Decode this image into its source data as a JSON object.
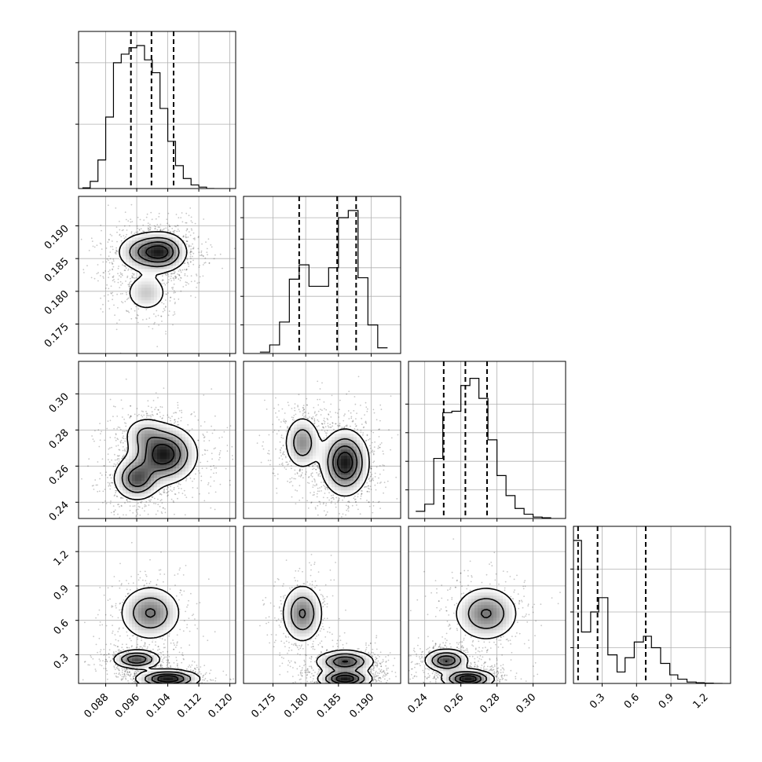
{
  "chart_data": {
    "type": "scatter",
    "variables": [
      {
        "ticks": [
          0.088,
          0.096,
          0.104,
          0.112,
          0.12
        ],
        "labels": [
          "0.088",
          "0.096",
          "0.104",
          "0.112",
          "0.120"
        ],
        "range": [
          0.081,
          0.1215
        ]
      },
      {
        "ticks": [
          0.175,
          0.18,
          0.185,
          0.19
        ],
        "labels": [
          "0.175",
          "0.180",
          "0.185",
          "0.190"
        ],
        "range": [
          0.1705,
          0.1945
        ]
      },
      {
        "ticks": [
          0.24,
          0.26,
          0.28,
          0.3
        ],
        "labels": [
          "0.24",
          "0.26",
          "0.28",
          "0.30"
        ],
        "range": [
          0.231,
          0.318
        ]
      },
      {
        "ticks": [
          0.3,
          0.6,
          0.9,
          1.2
        ],
        "labels": [
          "0.3",
          "0.6",
          "0.9",
          "1.2"
        ],
        "range": [
          0.05,
          1.42
        ]
      }
    ],
    "histograms": [
      {
        "edges": [
          0.082,
          0.084,
          0.086,
          0.088,
          0.09,
          0.092,
          0.094,
          0.096,
          0.098,
          0.1,
          0.102,
          0.104,
          0.106,
          0.108,
          0.11,
          0.112,
          0.114,
          0.116
        ],
        "counts": [
          0.005,
          0.05,
          0.2,
          0.5,
          0.88,
          0.94,
          0.985,
          1.0,
          0.9,
          0.81,
          0.56,
          0.33,
          0.16,
          0.07,
          0.025,
          0.01,
          0.0
        ],
        "quantiles": [
          0.0945,
          0.0998,
          0.1055
        ],
        "grid_values": [
          0.45,
          0.88
        ]
      },
      {
        "edges": [
          0.173,
          0.1745,
          0.176,
          0.1775,
          0.179,
          0.1805,
          0.182,
          0.1835,
          0.185,
          0.1865,
          0.188,
          0.1895,
          0.191,
          0.1925
        ],
        "counts": [
          0.01,
          0.06,
          0.22,
          0.52,
          0.62,
          0.47,
          0.47,
          0.6,
          0.95,
          1.0,
          0.53,
          0.2,
          0.04
        ],
        "quantiles": [
          0.179,
          0.1848,
          0.1877
        ],
        "grid_values": [
          0.2,
          0.4,
          0.6,
          0.8,
          0.95
        ]
      },
      {
        "edges": [
          0.235,
          0.24,
          0.245,
          0.25,
          0.255,
          0.26,
          0.265,
          0.27,
          0.275,
          0.28,
          0.285,
          0.29,
          0.295,
          0.3,
          0.305,
          0.31
        ],
        "counts": [
          0.05,
          0.1,
          0.42,
          0.74,
          0.75,
          0.93,
          0.98,
          0.84,
          0.55,
          0.3,
          0.16,
          0.07,
          0.03,
          0.01,
          0.005
        ],
        "quantiles": [
          0.2505,
          0.2625,
          0.2745
        ],
        "grid_values": [
          0.2,
          0.4,
          0.6,
          0.8
        ]
      },
      {
        "edges": [
          0.05,
          0.12,
          0.2,
          0.27,
          0.35,
          0.43,
          0.5,
          0.58,
          0.66,
          0.73,
          0.81,
          0.89,
          0.96,
          1.04,
          1.12,
          1.19,
          1.27,
          1.35
        ],
        "counts": [
          1.0,
          0.36,
          0.5,
          0.6,
          0.2,
          0.08,
          0.18,
          0.29,
          0.33,
          0.25,
          0.14,
          0.06,
          0.03,
          0.01,
          0.005,
          0.002,
          0.0
        ],
        "quantiles": [
          0.09,
          0.26,
          0.68
        ],
        "grid_values": [
          0.25,
          0.5,
          0.8
        ]
      }
    ],
    "contours": {
      "1-0": {
        "modes": [
          {
            "x": 0.0985,
            "y": 0.186,
            "sx": 0.0038,
            "sy": 0.0015,
            "w": 1.0
          },
          {
            "x": 0.1032,
            "y": 0.186,
            "sx": 0.003,
            "sy": 0.0015,
            "w": 0.95
          },
          {
            "x": 0.0985,
            "y": 0.1798,
            "sx": 0.003,
            "sy": 0.0016,
            "w": 0.5
          }
        ]
      },
      "2-0": {
        "modes": [
          {
            "x": 0.103,
            "y": 0.2665,
            "sx": 0.0042,
            "sy": 0.008,
            "w": 1.0
          },
          {
            "x": 0.096,
            "y": 0.253,
            "sx": 0.003,
            "sy": 0.006,
            "w": 0.75
          },
          {
            "x": 0.098,
            "y": 0.278,
            "sx": 0.0028,
            "sy": 0.005,
            "w": 0.3
          }
        ]
      },
      "2-1": {
        "modes": [
          {
            "x": 0.186,
            "y": 0.262,
            "sx": 0.0018,
            "sy": 0.009,
            "w": 1.0
          },
          {
            "x": 0.1795,
            "y": 0.273,
            "sx": 0.0014,
            "sy": 0.0075,
            "w": 0.55
          }
        ]
      },
      "3-0": {
        "modes": [
          {
            "x": 0.0995,
            "y": 0.665,
            "sx": 0.004,
            "sy": 0.12,
            "w": 0.6
          },
          {
            "x": 0.096,
            "y": 0.26,
            "sx": 0.003,
            "sy": 0.04,
            "w": 0.8
          },
          {
            "x": 0.104,
            "y": 0.09,
            "sx": 0.004,
            "sy": 0.04,
            "w": 1.0
          }
        ]
      },
      "3-1": {
        "modes": [
          {
            "x": 0.1795,
            "y": 0.66,
            "sx": 0.0016,
            "sy": 0.13,
            "w": 0.6
          },
          {
            "x": 0.186,
            "y": 0.24,
            "sx": 0.0022,
            "sy": 0.05,
            "w": 0.8
          },
          {
            "x": 0.186,
            "y": 0.09,
            "sx": 0.002,
            "sy": 0.04,
            "w": 1.0
          }
        ]
      },
      "3-2": {
        "modes": [
          {
            "x": 0.274,
            "y": 0.66,
            "sx": 0.009,
            "sy": 0.12,
            "w": 0.6
          },
          {
            "x": 0.252,
            "y": 0.25,
            "sx": 0.006,
            "sy": 0.05,
            "w": 0.8
          },
          {
            "x": 0.264,
            "y": 0.09,
            "sx": 0.007,
            "sy": 0.04,
            "w": 1.0
          }
        ]
      }
    },
    "contour_levels": [
      0.12,
      0.35,
      0.6,
      0.82
    ],
    "grid": true
  }
}
